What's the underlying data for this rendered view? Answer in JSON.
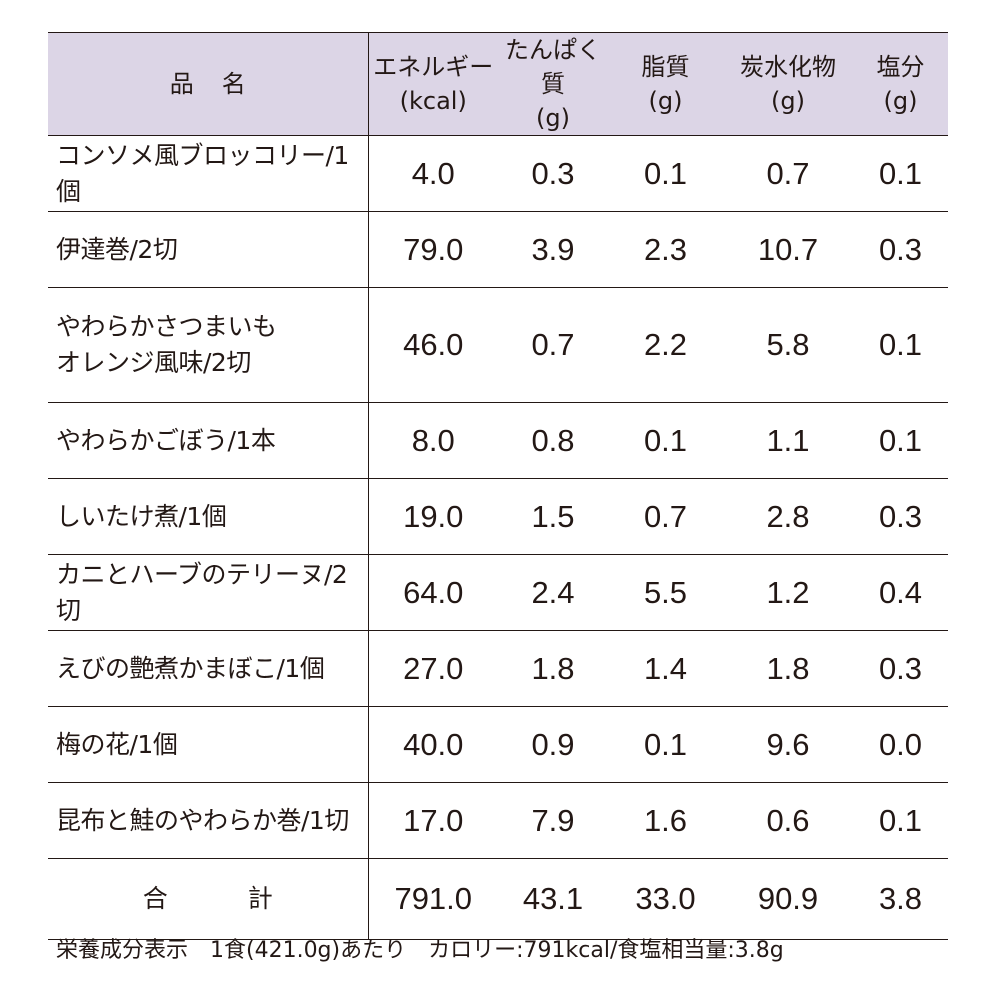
{
  "headers": {
    "name": "品名",
    "energy": {
      "label": "エネルギー",
      "unit": "(kcal)"
    },
    "protein": {
      "label": "たんぱく質",
      "unit": "(g)"
    },
    "fat": {
      "label": "脂質",
      "unit": "(g)"
    },
    "carb": {
      "label": "炭水化物",
      "unit": "(g)"
    },
    "salt": {
      "label": "塩分",
      "unit": "(g)"
    }
  },
  "rows": [
    {
      "name": "コンソメ風ブロッコリー/1個",
      "energy": "4.0",
      "protein": "0.3",
      "fat": "0.1",
      "carb": "0.7",
      "salt": "0.1"
    },
    {
      "name": "伊達巻/2切",
      "energy": "79.0",
      "protein": "3.9",
      "fat": "2.3",
      "carb": "10.7",
      "salt": "0.3"
    },
    {
      "name": "やわらかさつまいも",
      "name2": "オレンジ風味/2切",
      "energy": "46.0",
      "protein": "0.7",
      "fat": "2.2",
      "carb": "5.8",
      "salt": "0.1"
    },
    {
      "name": "やわらかごぼう/1本",
      "energy": "8.0",
      "protein": "0.8",
      "fat": "0.1",
      "carb": "1.1",
      "salt": "0.1"
    },
    {
      "name": "しいたけ煮/1個",
      "energy": "19.0",
      "protein": "1.5",
      "fat": "0.7",
      "carb": "2.8",
      "salt": "0.3"
    },
    {
      "name": "カニとハーブのテリーヌ/2切",
      "energy": "64.0",
      "protein": "2.4",
      "fat": "5.5",
      "carb": "1.2",
      "salt": "0.4"
    },
    {
      "name": "えびの艶煮かまぼこ/1個",
      "energy": "27.0",
      "protein": "1.8",
      "fat": "1.4",
      "carb": "1.8",
      "salt": "0.3"
    },
    {
      "name": "梅の花/1個",
      "energy": "40.0",
      "protein": "0.9",
      "fat": "0.1",
      "carb": "9.6",
      "salt": "0.0"
    },
    {
      "name": "昆布と鮭のやわらか巻/1切",
      "energy": "17.0",
      "protein": "7.9",
      "fat": "1.6",
      "carb": "0.6",
      "salt": "0.1"
    }
  ],
  "total": {
    "label": "合計",
    "energy": "791.0",
    "protein": "43.1",
    "fat": "33.0",
    "carb": "90.9",
    "salt": "3.8"
  },
  "footnote": "栄養成分表示　1食(421.0g)あたり　カロリー:791kcal/食塩相当量:3.8g",
  "colors": {
    "header_bg": "#dcd5e6",
    "text": "#231815"
  }
}
